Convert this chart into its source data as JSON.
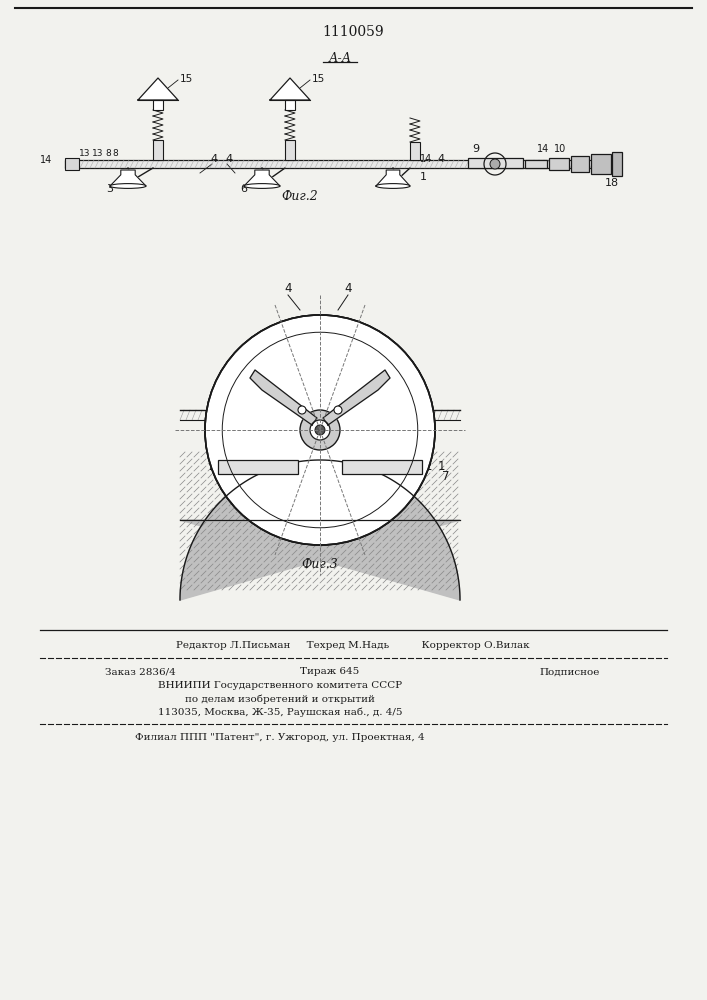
{
  "patent_number": "1110059",
  "fig2_label": "Фиг.2",
  "fig3_label": "Фиг.3",
  "section_label": "А-А",
  "footer_line1": "Редактор Л.Письман     Техред М.Надь          Корректор О.Вилак",
  "footer_line2a": "Заказ 2836/4",
  "footer_line2b": "Тираж 645",
  "footer_line2c": "Подписное",
  "footer_line3": "ВНИИПИ Государственного комитета СССР",
  "footer_line4": "по делам изобретений и открытий",
  "footer_line5": "113035, Москва, Ж-35, Раушская наб., д. 4/5",
  "footer_line6": "Филиал ППП \"Патент\", г. Ужгород, ул. Проектная, 4",
  "bg_color": "#f2f2ee",
  "line_color": "#1a1a1a"
}
